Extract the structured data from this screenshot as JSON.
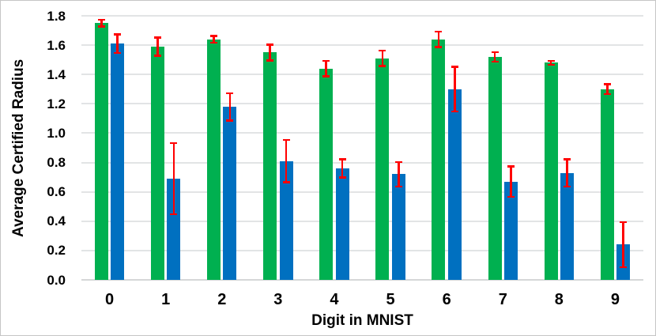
{
  "chart_data": {
    "type": "bar",
    "title": "",
    "xlabel": "Digit in MNIST",
    "ylabel": "Average Certified Radius",
    "categories": [
      "0",
      "1",
      "2",
      "3",
      "4",
      "5",
      "6",
      "7",
      "8",
      "9"
    ],
    "series": [
      {
        "name": "green",
        "color": "#00B050",
        "values": [
          1.75,
          1.59,
          1.64,
          1.55,
          1.44,
          1.51,
          1.64,
          1.52,
          1.48,
          1.3
        ],
        "errors": [
          0.03,
          0.07,
          0.03,
          0.06,
          0.06,
          0.06,
          0.06,
          0.04,
          0.02,
          0.04
        ]
      },
      {
        "name": "blue",
        "color": "#0070C0",
        "values": [
          1.61,
          0.69,
          1.18,
          0.81,
          0.76,
          0.72,
          1.3,
          0.67,
          0.73,
          0.24
        ],
        "errors": [
          0.07,
          0.25,
          0.1,
          0.15,
          0.07,
          0.09,
          0.16,
          0.11,
          0.1,
          0.16
        ]
      }
    ],
    "error_bar_color": "#FF0000",
    "ylim": [
      0,
      1.8
    ],
    "ytick_step": 0.2,
    "yticks": [
      "0.0",
      "0.2",
      "0.4",
      "0.6",
      "0.8",
      "1.0",
      "1.2",
      "1.4",
      "1.6",
      "1.8"
    ],
    "grid": true,
    "grid_color": "#E2E4E5",
    "axis_line_color": "#D5D7D8",
    "legend": "none",
    "text_color": "#000000"
  }
}
